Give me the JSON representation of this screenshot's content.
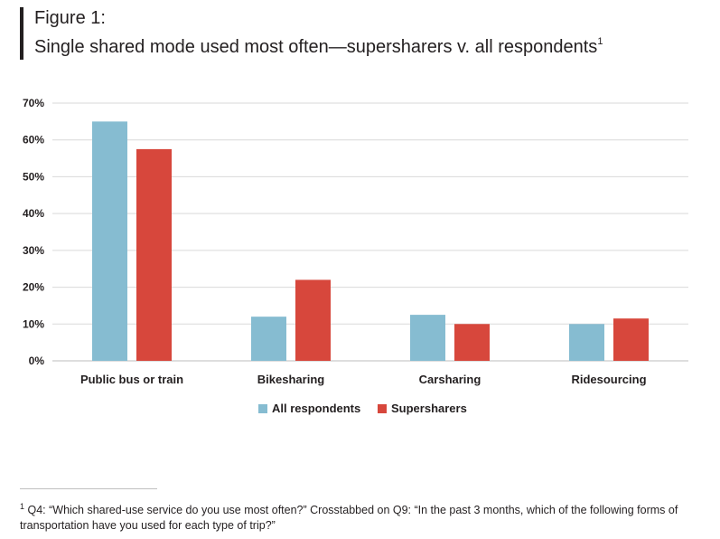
{
  "figure": {
    "label": "Figure 1:",
    "title": "Single shared mode used most often—supersharers v. all respondents",
    "title_note_marker": "1"
  },
  "footnote": {
    "marker": "1",
    "text": "Q4: “Which shared-use service do you use most often?” Crosstabbed on Q9: “In the past 3 months, which of the following forms of transportation have you used for each type of trip?”"
  },
  "chart_data": {
    "type": "bar",
    "categories": [
      "Public bus or train",
      "Bikesharing",
      "Carsharing",
      "Ridesourcing"
    ],
    "series": [
      {
        "name": "All respondents",
        "color": "#86bcd1",
        "values": [
          65,
          12,
          12.5,
          10
        ]
      },
      {
        "name": "Supersharers",
        "color": "#d7473c",
        "values": [
          57.5,
          22,
          10,
          11.5
        ]
      }
    ],
    "ylim": [
      0,
      70
    ],
    "yticks": [
      "0%",
      "10%",
      "20%",
      "30%",
      "40%",
      "50%",
      "60%",
      "70%"
    ],
    "grid": true,
    "legend_position": "bottom-center"
  }
}
